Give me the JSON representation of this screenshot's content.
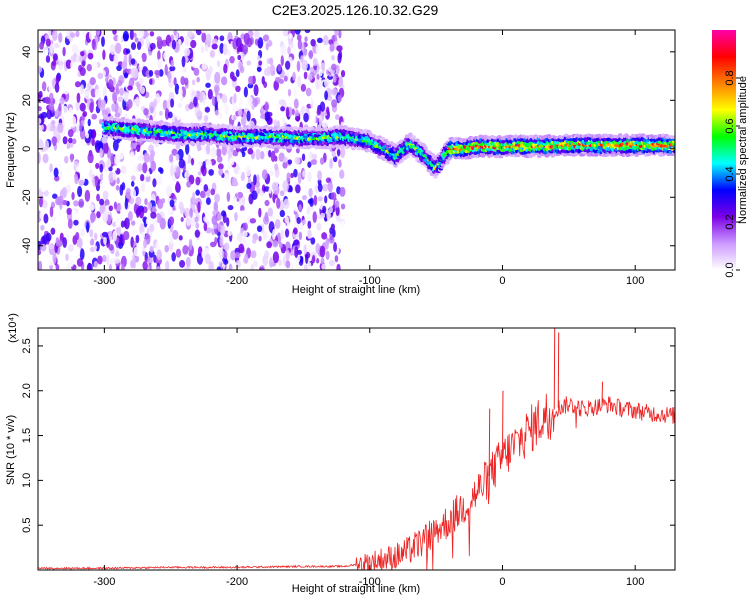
{
  "title": "C2E3.2025.126.10.32.G29",
  "chart_data": [
    {
      "type": "heatmap",
      "title": "C2E3.2025.126.10.32.G29",
      "xlabel": "Height of straight line (km)",
      "ylabel": "Frequency (Hz)",
      "xlim": [
        -350,
        130
      ],
      "ylim": [
        -50,
        49
      ],
      "x_ticks": [
        -300,
        -200,
        -100,
        0,
        100
      ],
      "y_ticks": [
        -40,
        -20,
        0,
        20,
        40
      ],
      "colorbar": {
        "label": "Normalized spectral amplitude",
        "range": [
          0,
          1
        ],
        "ticks": [
          0.0,
          0.2,
          0.4,
          0.6,
          0.8
        ],
        "tick_labels": [
          "0.0",
          "0.2",
          "0.4",
          "0.6",
          "0.8"
        ],
        "colors": [
          "#ffffff",
          "#cc99ff",
          "#7a00e6",
          "#0000ff",
          "#00ffff",
          "#00ff00",
          "#ffff00",
          "#ff8000",
          "#ff0000",
          "#ff00aa"
        ]
      },
      "ridge": {
        "x": [
          -300,
          -280,
          -260,
          -240,
          -220,
          -200,
          -180,
          -160,
          -140,
          -120,
          -100,
          -90,
          -80,
          -70,
          -60,
          -50,
          -40,
          -30,
          -20,
          0,
          20,
          50,
          80,
          110,
          130
        ],
        "y": [
          9,
          8,
          7,
          6,
          6,
          5,
          5,
          4.5,
          4.5,
          5,
          3,
          0,
          -3,
          2,
          -2,
          -8,
          0,
          0,
          1,
          1,
          1,
          1.5,
          1.5,
          1.5,
          1.5
        ]
      },
      "noise_region": [
        -350,
        -120
      ]
    },
    {
      "type": "line",
      "xlabel": "Height of straight line (km)",
      "ylabel": "SNR (10 * v/v)",
      "y_multiplier": "(x10⁴)",
      "xlim": [
        -350,
        130
      ],
      "ylim": [
        0,
        2.7
      ],
      "x_ticks": [
        -300,
        -200,
        -100,
        0,
        100
      ],
      "y_ticks": [
        0.5,
        1.0,
        1.5,
        2.0,
        2.5
      ],
      "y_tick_labels": [
        "0.5",
        "1.0",
        "1.5",
        "2.0",
        "2.5"
      ],
      "line_color": "#ee2222",
      "series": [
        {
          "x": [
            -350,
            -300,
            -250,
            -200,
            -150,
            -120,
            -110,
            -100,
            -90,
            -80,
            -70,
            -60,
            -50,
            -40,
            -30,
            -20,
            -10,
            0,
            10,
            20,
            30,
            40,
            50,
            60,
            70,
            80,
            90,
            100,
            110,
            120,
            130
          ],
          "y": [
            0.02,
            0.02,
            0.03,
            0.03,
            0.04,
            0.04,
            0.06,
            0.08,
            0.12,
            0.15,
            0.22,
            0.32,
            0.45,
            0.55,
            0.7,
            0.85,
            1.05,
            1.25,
            1.4,
            1.55,
            1.7,
            1.8,
            1.85,
            1.8,
            1.82,
            1.85,
            1.8,
            1.78,
            1.75,
            1.74,
            1.72
          ]
        }
      ],
      "spikes": [
        {
          "x": 0,
          "y": 2.0
        },
        {
          "x": 39,
          "y": 2.7
        },
        {
          "x": 42,
          "y": 2.65
        },
        {
          "x": -10,
          "y": 1.8
        },
        {
          "x": 75,
          "y": 2.1
        }
      ]
    }
  ]
}
